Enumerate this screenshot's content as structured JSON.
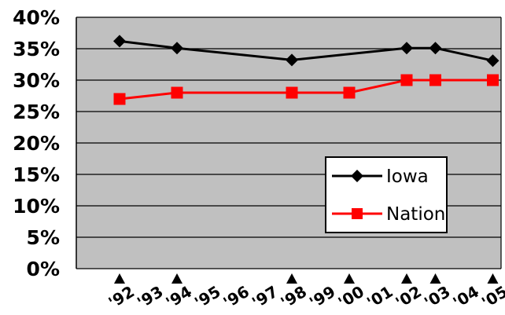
{
  "chart_data": {
    "type": "line",
    "categories": [
      "'92",
      "'93",
      "'94",
      "'95",
      "'96",
      "'97",
      "'98",
      "'99",
      "'00",
      "'01",
      "'02",
      "'03",
      "'04",
      "'05"
    ],
    "series": [
      {
        "name": "Iowa",
        "color": "#000000",
        "marker": "diamond",
        "values": [
          36.2,
          null,
          35.1,
          null,
          null,
          null,
          33.2,
          null,
          null,
          null,
          35.1,
          35.1,
          null,
          33.1
        ]
      },
      {
        "name": "Nation",
        "color": "#ff0000",
        "marker": "square",
        "values": [
          27.0,
          null,
          28.0,
          null,
          null,
          null,
          28.0,
          null,
          28.0,
          null,
          30.0,
          30.0,
          null,
          30.0
        ]
      }
    ],
    "marked_years": [
      "'92",
      "'94",
      "'98",
      "'00",
      "'02",
      "'03",
      "'05"
    ],
    "ylim": [
      0,
      40
    ],
    "yticks": [
      "0%",
      "5%",
      "10%",
      "15%",
      "20%",
      "25%",
      "30%",
      "35%",
      "40%"
    ],
    "ytick_values": [
      0,
      5,
      10,
      15,
      20,
      25,
      30,
      35,
      40
    ],
    "grid": true,
    "plot_background": "#c0c0c0",
    "legend_position": "bottom-right",
    "title": "",
    "xlabel": "",
    "ylabel": ""
  }
}
